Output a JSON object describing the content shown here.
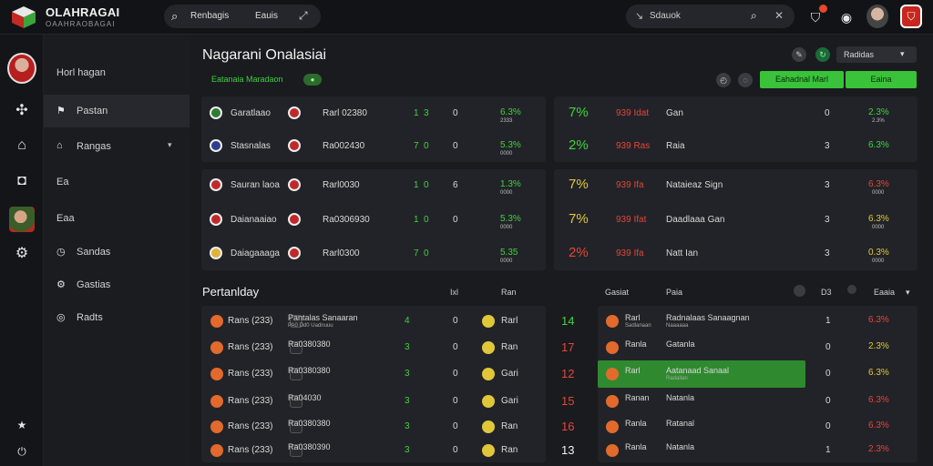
{
  "header": {
    "brand": "OLAHRAGAI",
    "brand_sub": "OAAHRAOBAGAI",
    "search_left": {
      "value": "Renbagis",
      "tag": "Eauis"
    },
    "search_right": {
      "placeholder": "Sdauok"
    },
    "icons": [
      "shield-notify-icon",
      "record-icon",
      "user-avatar",
      "club-shield-icon"
    ]
  },
  "sidebar": {
    "items": [
      {
        "label": "Horl hagan",
        "icon": ""
      },
      {
        "label": "Pastan",
        "icon": "flag-icon",
        "active": true
      },
      {
        "label": "Rangas",
        "icon": "home-icon",
        "chevron": true
      },
      {
        "label": "Ea",
        "icon": ""
      },
      {
        "label": "Eaa",
        "icon": ""
      },
      {
        "label": "Sandas",
        "icon": "clock-icon"
      },
      {
        "label": "Gastias",
        "icon": "settings-icon"
      },
      {
        "label": "Radts",
        "icon": "target-icon"
      }
    ]
  },
  "main": {
    "title": "Nagarani Onalasiai",
    "subtitle": "Eatanaia Maradaon",
    "live": "●",
    "dropdown": "Radidas",
    "buttons": {
      "primary": "Eahadnal Marl",
      "secondary": "Eaina"
    }
  },
  "top_matches": [
    {
      "team": "Garatlaao",
      "score": "Rarl 02380",
      "a": "1",
      "b": "3",
      "c": "0",
      "pct": "6.3%",
      "pct_sub": "2333"
    },
    {
      "team": "Stasnalas",
      "score": "Ra002430",
      "a": "7",
      "b": "0",
      "c": "0",
      "pct": "5.3%",
      "pct_sub": "0000"
    },
    {
      "team": "Sauran laoa",
      "score": "Rarl0030",
      "a": "1",
      "b": "0",
      "c": "6",
      "pct": "1.3%",
      "pct_sub": "0000"
    },
    {
      "team": "Daianaaiao",
      "score": "Ra0306930",
      "a": "1",
      "b": "0",
      "c": "0",
      "pct": "5.3%",
      "pct_sub": "0000"
    },
    {
      "team": "Daiagaaaga",
      "score": "Rarl0300",
      "a": "7",
      "b": "0",
      "c": "",
      "pct": "5.35",
      "pct_sub": "0000"
    }
  ],
  "top_right": [
    {
      "big": "7%",
      "code": "939 Idat",
      "name": "Gan",
      "n": "0",
      "pct": "2.3%",
      "pct_sub": "2.3%",
      "color": "green"
    },
    {
      "big": "2%",
      "code": "939 Ras",
      "name": "Raia",
      "n": "3",
      "pct": "6.3%",
      "pct_sub": "",
      "color": "green"
    },
    {
      "big": "7%",
      "code": "939 Ifa",
      "name": "Nataieaz Sign",
      "n": "3",
      "pct": "6.3%",
      "pct_sub": "0000",
      "color": "red"
    },
    {
      "big": "7%",
      "code": "939 Ifat",
      "name": "Daadlaaa Gan",
      "n": "3",
      "pct": "6.3%",
      "pct_sub": "0000",
      "color": "yellow"
    },
    {
      "big": "2%",
      "code": "939 Ifa",
      "name": "Natt Ian",
      "n": "3",
      "pct": "0.3%",
      "pct_sub": "0000",
      "color": "yellow"
    }
  ],
  "section": {
    "title": "Pertanlday",
    "head_a": "Ixl",
    "head_b": "Ran",
    "head_c": "Gasiat",
    "head_d": "Paia",
    "head_e": "D3",
    "head_f": "Eaaia"
  },
  "bottom_matches": [
    {
      "label": "Rans (233)",
      "team": "Pantalas Sanaaran",
      "team_sub": "PA0 Dd0 Uadnuuu",
      "a": "4",
      "b": "0",
      "c": "Rarl",
      "big": "14",
      "bigColor": "green"
    },
    {
      "label": "Rans (233)",
      "team": "Ra0380380",
      "team_sub": "",
      "a": "3",
      "b": "0",
      "c": "Ran",
      "big": "17",
      "bigColor": "red"
    },
    {
      "label": "Rans (233)",
      "team": "Ra0380380",
      "team_sub": "",
      "a": "3",
      "b": "0",
      "c": "Gari",
      "big": "12",
      "bigColor": "red"
    },
    {
      "label": "Rans (233)",
      "team": "Ra04030",
      "team_sub": "",
      "a": "3",
      "b": "0",
      "c": "Gari",
      "big": "15",
      "bigColor": "red"
    },
    {
      "label": "Rans (233)",
      "team": "Ra0380380",
      "team_sub": "",
      "a": "3",
      "b": "0",
      "c": "Ran",
      "big": "16",
      "bigColor": "red"
    },
    {
      "label": "Rans (233)",
      "team": "Ra0380390",
      "team_sub": "",
      "a": "3",
      "b": "0",
      "c": "Ran",
      "big": "13",
      "bigColor": "white"
    }
  ],
  "bottom_right": [
    {
      "name": "Rarl",
      "sub": "Sadlanaan",
      "extra": "Radnalaas Sanaagnan",
      "extra_sub": "Naaaaaa",
      "n": "1",
      "pct": "6.3%",
      "color": "red"
    },
    {
      "name": "Ranla",
      "sub": "",
      "extra": "Gatanla",
      "extra_sub": "",
      "n": "0",
      "pct": "2.3%",
      "color": "yellow"
    },
    {
      "name": "Rarl",
      "sub": "",
      "extra": "Aatanaad Sanaal",
      "extra_sub": "Radallan",
      "n": "0",
      "pct": "6.3%",
      "color": "yellow",
      "highlight": true
    },
    {
      "name": "Ranan",
      "sub": "",
      "extra": "Natanla",
      "extra_sub": "",
      "n": "0",
      "pct": "6.3%",
      "color": "red"
    },
    {
      "name": "Ranla",
      "sub": "",
      "extra": "Ratanal",
      "extra_sub": "",
      "n": "0",
      "pct": "6.3%",
      "color": "red"
    },
    {
      "name": "Ranla",
      "sub": "",
      "extra": "Natanla",
      "extra_sub": "",
      "n": "1",
      "pct": "2.3%",
      "color": "red"
    }
  ]
}
